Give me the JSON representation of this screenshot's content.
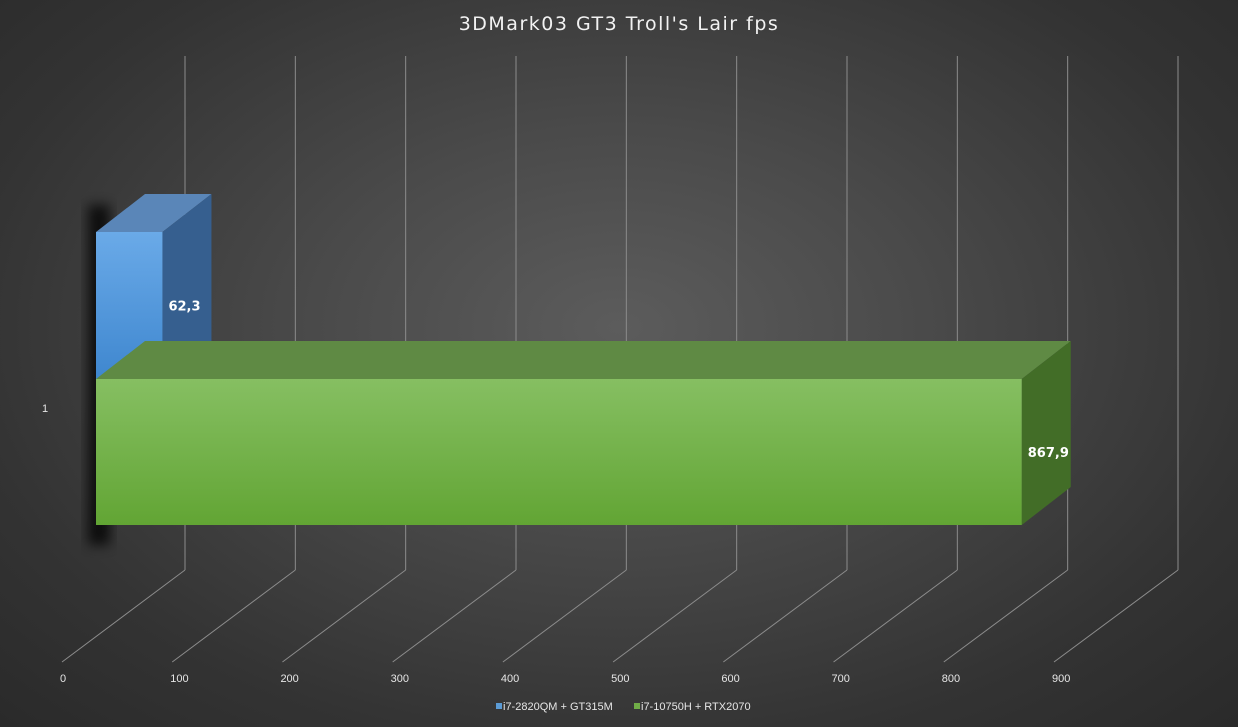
{
  "chart_data": {
    "type": "bar",
    "orientation": "horizontal",
    "style": "3d-clustered",
    "title": "3DMark03  GT3  Troll's Lair fps",
    "categories": [
      "1"
    ],
    "series": [
      {
        "name": "i7-2820QM + GT315M",
        "values": [
          62.3
        ],
        "label": "62,3",
        "color": "#5b9bd5"
      },
      {
        "name": "i7-10750H + RTX2070",
        "values": [
          867.9
        ],
        "label": "867,9",
        "color": "#70ad47"
      }
    ],
    "xlim": [
      0,
      900
    ],
    "ticks": [
      "0",
      "100",
      "200",
      "300",
      "400",
      "500",
      "600",
      "700",
      "800",
      "900"
    ],
    "grid": true,
    "legend_position": "bottom"
  }
}
